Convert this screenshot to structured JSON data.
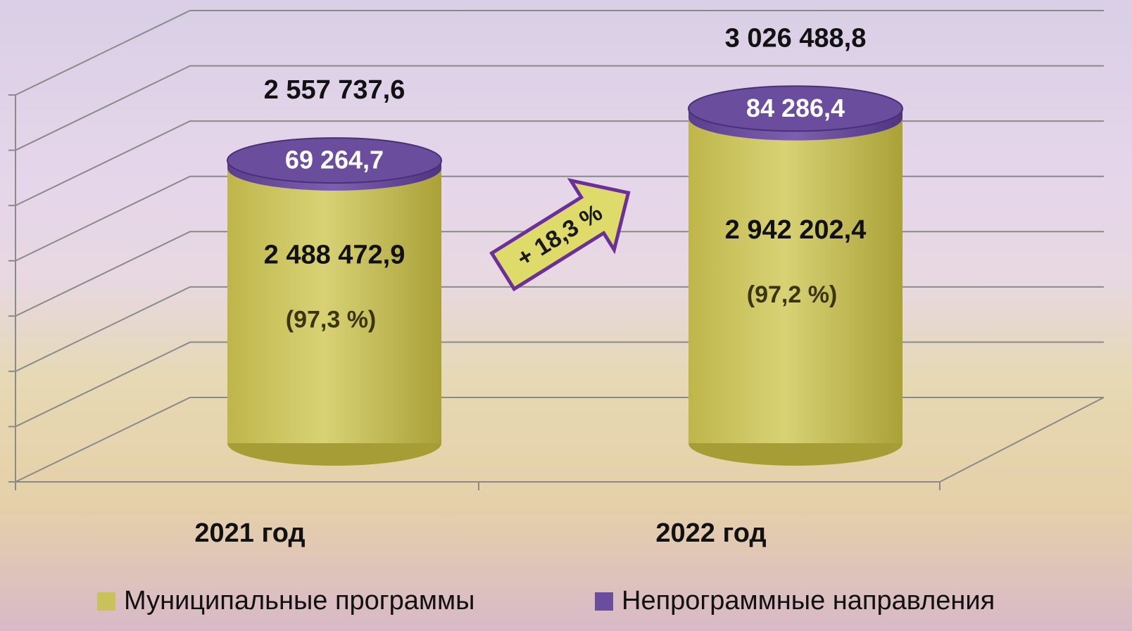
{
  "chart_data": {
    "type": "cylinder_stacked_bar",
    "categories": [
      "2021 год",
      "2022 год"
    ],
    "series": [
      {
        "name": "Муниципальные программы",
        "color": "#c9c25a",
        "values": [
          2488472.9,
          2942202.4
        ],
        "value_labels": [
          "2 488 472,9",
          "2 942 202,4"
        ],
        "shares": [
          97.3,
          97.2
        ],
        "share_labels": [
          "(97,3 %)",
          "(97,2 %)"
        ]
      },
      {
        "name": "Непрограммные направления",
        "color": "#6b4d9e",
        "values": [
          69264.7,
          84286.4
        ],
        "value_labels": [
          "69 264,7",
          "84 286,4"
        ]
      }
    ],
    "totals": [
      2557737.6,
      3026488.8
    ],
    "total_labels": [
      "2 557 737,6",
      "3 026 488,8"
    ],
    "annotation": "+ 18,3 %",
    "ylim": [
      0,
      3500000
    ],
    "yticks": [
      0,
      500000,
      1000000,
      1500000,
      2000000,
      2500000,
      3000000,
      3500000
    ],
    "grid": true
  }
}
